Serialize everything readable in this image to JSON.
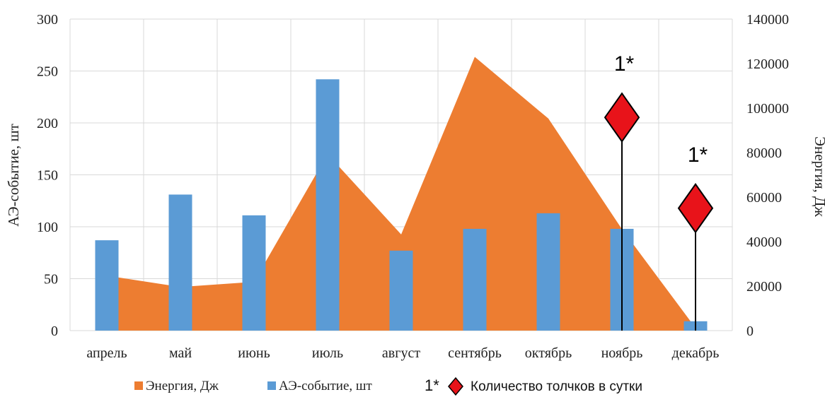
{
  "chart_data": {
    "type": "bar",
    "categories": [
      "апрель",
      "май",
      "июнь",
      "июль",
      "август",
      "сентябрь",
      "октябрь",
      "ноябрь",
      "декабрь"
    ],
    "ylabel": "АЭ-событие, шт",
    "y2label": "Энергия, Дж",
    "ylim": [
      0,
      300
    ],
    "y2lim": [
      0,
      140000
    ],
    "yticks": [
      "0",
      "50",
      "100",
      "150",
      "200",
      "250",
      "300"
    ],
    "y2ticks": [
      "0",
      "20000",
      "40000",
      "60000",
      "80000",
      "100000",
      "120000",
      "140000"
    ],
    "grid": true,
    "legend_position": "bottom",
    "series": [
      {
        "name": "Энергия, Дж",
        "type": "area",
        "axis": "right",
        "color": "#ED7D31",
        "values": [
          24700,
          19600,
          21900,
          79300,
          43200,
          123000,
          95300,
          45600,
          1200
        ]
      },
      {
        "name": "АЭ-событие, шт",
        "type": "bar",
        "axis": "left",
        "color": "#5B9BD5",
        "values": [
          87,
          131,
          111,
          242,
          77,
          98,
          113,
          98,
          9
        ]
      },
      {
        "name": "Количество толчков в сутки",
        "type": "marker",
        "marker": "diamond",
        "color": "#E8131A",
        "legend_prefix": "1*",
        "points": [
          {
            "category": "ноябрь",
            "value": 95800,
            "label": "1*"
          },
          {
            "category": "декабрь",
            "value": 55000,
            "label": "1*"
          }
        ]
      }
    ]
  }
}
